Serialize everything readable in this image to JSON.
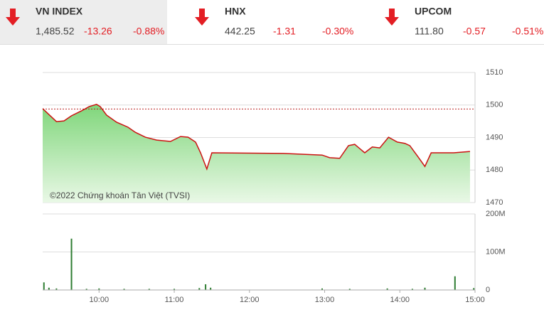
{
  "tickers": [
    {
      "name": "VN INDEX",
      "price": "1,485.52",
      "change": "-13.26",
      "percent": "-0.88%"
    },
    {
      "name": "HNX",
      "price": "442.25",
      "change": "-1.31",
      "percent": "-0.30%"
    },
    {
      "name": "UPCOM",
      "price": "111.80",
      "change": "-0.57",
      "percent": "-0.51%"
    }
  ],
  "chart_data": [
    {
      "type": "line",
      "watermark": "©2022 Chứng khoán Tân Việt (TVSI)",
      "x": [
        555,
        561,
        566,
        572,
        578,
        586,
        592,
        598,
        601,
        606,
        614,
        623,
        629,
        637,
        646,
        657,
        665,
        671,
        677,
        681,
        686,
        690,
        747,
        778,
        784,
        792,
        799,
        804,
        812,
        818,
        824,
        831,
        838,
        844,
        848,
        855,
        860,
        865,
        883,
        896
      ],
      "series": [
        {
          "color": "#cc1111",
          "values": [
            1498.9,
            1496.7,
            1494.9,
            1495.1,
            1496.7,
            1498.2,
            1499.5,
            1500.2,
            1499.5,
            1496.9,
            1494.7,
            1493.2,
            1491.6,
            1490.1,
            1489.2,
            1488.8,
            1490.3,
            1490.1,
            1488.6,
            1485.3,
            1480.3,
            1485.3,
            1485.1,
            1484.6,
            1483.8,
            1483.6,
            1487.5,
            1487.9,
            1485.3,
            1487.1,
            1486.8,
            1490.1,
            1488.6,
            1488.2,
            1487.5,
            1483.8,
            1481.1,
            1485.3,
            1485.3,
            1485.7
          ]
        }
      ],
      "reference": 1498.78,
      "xlim": [
        555,
        900
      ],
      "ylim": [
        1470,
        1510
      ],
      "yticks": [
        1470,
        1480,
        1490,
        1500,
        1510
      ],
      "grid": true
    },
    {
      "type": "bar",
      "color": "#2e7d32",
      "x": [
        556,
        560,
        566,
        578,
        590,
        600,
        620,
        640,
        660,
        680,
        685,
        689,
        778,
        800,
        830,
        850,
        860,
        884,
        899
      ],
      "values": [
        20,
        6,
        4,
        135,
        3,
        4,
        3,
        3,
        3,
        5,
        15,
        6,
        4,
        3,
        4,
        3,
        6,
        36,
        5
      ],
      "xlim": [
        555,
        900
      ],
      "ylim": [
        0,
        200
      ],
      "yticks": [
        0,
        {
          "value": 100,
          "label": "100M"
        },
        {
          "value": 200,
          "label": "200M"
        }
      ],
      "xticks": [
        {
          "value": 600,
          "label": "10:00"
        },
        {
          "value": 660,
          "label": "11:00"
        },
        {
          "value": 720,
          "label": "12:00"
        },
        {
          "value": 780,
          "label": "13:00"
        },
        {
          "value": 840,
          "label": "14:00"
        },
        {
          "value": 900,
          "label": "15:00"
        }
      ],
      "grid": true
    }
  ]
}
